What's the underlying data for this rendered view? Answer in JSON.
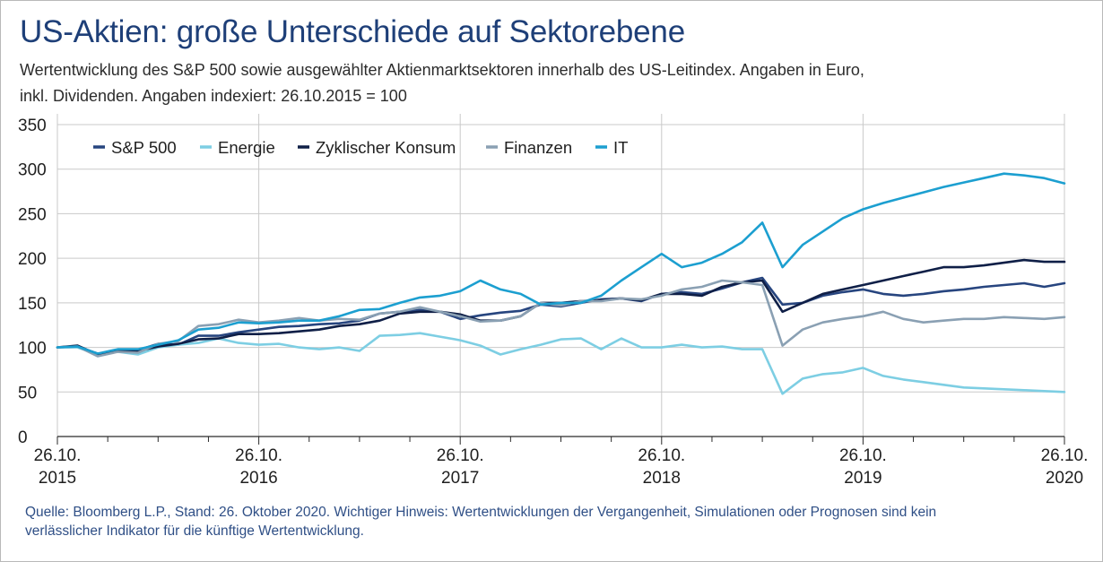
{
  "header": {
    "title": "US-Aktien: große Unterschiede auf Sektorebene",
    "subtitle_line1": "Wertentwicklung des S&P 500 sowie ausgewählter Aktienmarktsektoren innerhalb des US-Leitindex. Angaben in Euro,",
    "subtitle_line2": "inkl. Dividenden. Angaben indexiert: 26.10.2015 = 100"
  },
  "footer": {
    "source_line1": "Quelle: Bloomberg L.P., Stand: 26. Oktober 2020. Wichtiger Hinweis: Wertentwicklungen der Vergangenheit, Simulationen oder Prognosen sind kein",
    "source_line2": "verlässlicher Indikator für die künftige Wertentwicklung."
  },
  "chart_data": {
    "type": "line",
    "title": "US-Aktien: große Unterschiede auf Sektorebene",
    "xlabel": "",
    "ylabel": "",
    "xlim": [
      2015,
      2020
    ],
    "ylim": [
      0,
      350
    ],
    "y_ticks": [
      0,
      50,
      100,
      150,
      200,
      250,
      300,
      350
    ],
    "x_ticks": [
      {
        "value": 2015,
        "line1": "26.10.",
        "line2": "2015"
      },
      {
        "value": 2016,
        "line1": "26.10.",
        "line2": "2016"
      },
      {
        "value": 2017,
        "line1": "26.10.",
        "line2": "2017"
      },
      {
        "value": 2018,
        "line1": "26.10.",
        "line2": "2018"
      },
      {
        "value": 2019,
        "line1": "26.10.",
        "line2": "2019"
      },
      {
        "value": 2020,
        "line1": "26.10.",
        "line2": "2020"
      }
    ],
    "grid": true,
    "legend_position": "top-left",
    "x": [
      2015.0,
      2015.1,
      2015.2,
      2015.3,
      2015.4,
      2015.5,
      2015.6,
      2015.7,
      2015.8,
      2015.9,
      2016.0,
      2016.1,
      2016.2,
      2016.3,
      2016.4,
      2016.5,
      2016.6,
      2016.7,
      2016.8,
      2016.9,
      2017.0,
      2017.1,
      2017.2,
      2017.3,
      2017.4,
      2017.5,
      2017.6,
      2017.7,
      2017.8,
      2017.9,
      2018.0,
      2018.1,
      2018.2,
      2018.3,
      2018.4,
      2018.5,
      2018.6,
      2018.7,
      2018.8,
      2018.9,
      2019.0,
      2019.1,
      2019.2,
      2019.3,
      2019.4,
      2019.5,
      2019.6,
      2019.7,
      2019.8,
      2019.9,
      2020.0
    ],
    "series": [
      {
        "name": "S&P 500",
        "color": "#27457f",
        "values": [
          100,
          101,
          93,
          96,
          97,
          104,
          103,
          113,
          113,
          117,
          120,
          123,
          124,
          126,
          127,
          130,
          138,
          140,
          142,
          140,
          132,
          136,
          139,
          141,
          148,
          146,
          150,
          154,
          155,
          152,
          160,
          162,
          160,
          166,
          173,
          178,
          148,
          150,
          158,
          162,
          165,
          160,
          158,
          160,
          163,
          165,
          168,
          170,
          172,
          168,
          172
        ]
      },
      {
        "name": "Energie",
        "color": "#7dcee3",
        "values": [
          100,
          100,
          92,
          95,
          92,
          100,
          103,
          105,
          110,
          105,
          103,
          104,
          100,
          98,
          100,
          96,
          113,
          114,
          116,
          112,
          108,
          102,
          92,
          98,
          103,
          109,
          110,
          98,
          110,
          100,
          100,
          103,
          100,
          101,
          98,
          98,
          48,
          65,
          70,
          72,
          77,
          68,
          64,
          61,
          58,
          55,
          54,
          53,
          52,
          51,
          50
        ]
      },
      {
        "name": "Zyklischer Konsum",
        "color": "#0f1f47",
        "values": [
          100,
          102,
          92,
          96,
          96,
          101,
          104,
          109,
          110,
          115,
          115,
          116,
          118,
          120,
          124,
          126,
          130,
          138,
          140,
          140,
          137,
          130,
          130,
          135,
          150,
          150,
          152,
          153,
          155,
          153,
          160,
          160,
          158,
          168,
          173,
          175,
          140,
          150,
          160,
          165,
          170,
          175,
          180,
          185,
          190,
          190,
          192,
          195,
          198,
          196,
          196
        ]
      },
      {
        "name": "Finanzen",
        "color": "#8aa0b3",
        "values": [
          100,
          101,
          90,
          95,
          94,
          104,
          107,
          124,
          126,
          131,
          128,
          130,
          133,
          130,
          132,
          131,
          138,
          140,
          145,
          140,
          135,
          129,
          130,
          135,
          150,
          147,
          152,
          152,
          155,
          154,
          158,
          165,
          168,
          175,
          173,
          170,
          102,
          120,
          128,
          132,
          135,
          140,
          132,
          128,
          130,
          132,
          132,
          134,
          133,
          132,
          134
        ]
      },
      {
        "name": "IT",
        "color": "#1c9fd0",
        "values": [
          100,
          101,
          93,
          98,
          98,
          103,
          108,
          120,
          122,
          128,
          127,
          128,
          130,
          130,
          135,
          142,
          143,
          150,
          156,
          158,
          163,
          175,
          165,
          160,
          148,
          150,
          150,
          158,
          175,
          190,
          205,
          190,
          195,
          205,
          218,
          240,
          190,
          215,
          230,
          245,
          255,
          262,
          268,
          274,
          280,
          285,
          290,
          295,
          293,
          290,
          284
        ]
      }
    ]
  }
}
